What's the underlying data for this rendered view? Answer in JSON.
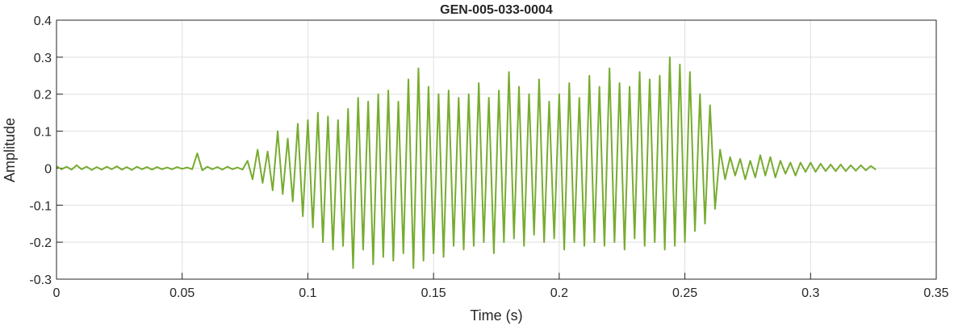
{
  "chart_data": {
    "type": "line",
    "title": "GEN-005-033-0004",
    "x_label": "Time (s)",
    "y_label": "Amplitude",
    "x": [
      0,
      0.002,
      0.004,
      0.006,
      0.008,
      0.01,
      0.012,
      0.014,
      0.016,
      0.018,
      0.02,
      0.022,
      0.024,
      0.026,
      0.028,
      0.03,
      0.032,
      0.034,
      0.036,
      0.038,
      0.04,
      0.042,
      0.044,
      0.046,
      0.048,
      0.05,
      0.052,
      0.054,
      0.056,
      0.058,
      0.06,
      0.062,
      0.064,
      0.066,
      0.068,
      0.07,
      0.072,
      0.074,
      0.076,
      0.078,
      0.08,
      0.082,
      0.084,
      0.086,
      0.088,
      0.09,
      0.092,
      0.094,
      0.096,
      0.098,
      0.1,
      0.102,
      0.104,
      0.106,
      0.108,
      0.11,
      0.112,
      0.114,
      0.116,
      0.118,
      0.12,
      0.122,
      0.124,
      0.126,
      0.128,
      0.13,
      0.132,
      0.134,
      0.136,
      0.138,
      0.14,
      0.142,
      0.144,
      0.146,
      0.148,
      0.15,
      0.152,
      0.154,
      0.156,
      0.158,
      0.16,
      0.162,
      0.164,
      0.166,
      0.168,
      0.17,
      0.172,
      0.174,
      0.176,
      0.178,
      0.18,
      0.182,
      0.184,
      0.186,
      0.188,
      0.19,
      0.192,
      0.194,
      0.196,
      0.198,
      0.2,
      0.202,
      0.204,
      0.206,
      0.208,
      0.21,
      0.212,
      0.214,
      0.216,
      0.218,
      0.22,
      0.222,
      0.224,
      0.226,
      0.228,
      0.23,
      0.232,
      0.234,
      0.236,
      0.238,
      0.24,
      0.242,
      0.244,
      0.246,
      0.248,
      0.25,
      0.252,
      0.254,
      0.256,
      0.258,
      0.26,
      0.262,
      0.264,
      0.266,
      0.268,
      0.27,
      0.272,
      0.274,
      0.276,
      0.278,
      0.28,
      0.282,
      0.284,
      0.286,
      0.288,
      0.29,
      0.292,
      0.294,
      0.296,
      0.298,
      0.3,
      0.302,
      0.304,
      0.306,
      0.308,
      0.31,
      0.312,
      0.314,
      0.316,
      0.318,
      0.32,
      0.322,
      0.324,
      0.326
    ],
    "series": [
      {
        "color": "#77ac30",
        "values": [
          0.005,
          -0.003,
          0.004,
          -0.004,
          0.008,
          -0.003,
          0.004,
          -0.005,
          0.003,
          -0.004,
          0.004,
          -0.003,
          0.005,
          -0.004,
          0.003,
          -0.005,
          0.004,
          -0.003,
          0.003,
          -0.004,
          0.003,
          -0.003,
          0.002,
          -0.003,
          0.003,
          -0.002,
          0.002,
          -0.003,
          0.04,
          -0.006,
          0.004,
          -0.003,
          0.003,
          -0.004,
          0.004,
          -0.003,
          0.002,
          -0.004,
          0.02,
          -0.03,
          0.05,
          -0.04,
          0.045,
          -0.06,
          0.1,
          -0.07,
          0.08,
          -0.09,
          0.12,
          -0.13,
          0.13,
          -0.16,
          0.15,
          -0.2,
          0.14,
          -0.22,
          0.13,
          -0.21,
          0.16,
          -0.27,
          0.19,
          -0.22,
          0.18,
          -0.26,
          0.2,
          -0.24,
          0.21,
          -0.25,
          0.18,
          -0.23,
          0.24,
          -0.27,
          0.27,
          -0.25,
          0.22,
          -0.23,
          0.2,
          -0.24,
          0.21,
          -0.21,
          0.19,
          -0.22,
          0.2,
          -0.21,
          0.23,
          -0.2,
          0.19,
          -0.23,
          0.21,
          -0.2,
          0.26,
          -0.19,
          0.22,
          -0.21,
          0.2,
          -0.18,
          0.24,
          -0.2,
          0.18,
          -0.19,
          0.2,
          -0.22,
          0.23,
          -0.2,
          0.19,
          -0.21,
          0.25,
          -0.2,
          0.22,
          -0.21,
          0.27,
          -0.2,
          0.23,
          -0.22,
          0.22,
          -0.19,
          0.26,
          -0.21,
          0.24,
          -0.2,
          0.25,
          -0.22,
          0.3,
          -0.21,
          0.28,
          -0.2,
          0.26,
          -0.17,
          0.2,
          -0.15,
          0.17,
          -0.11,
          0.05,
          -0.03,
          0.03,
          -0.02,
          0.025,
          -0.03,
          0.02,
          -0.025,
          0.035,
          -0.02,
          0.03,
          -0.025,
          0.02,
          -0.015,
          0.015,
          -0.02,
          0.015,
          -0.01,
          0.015,
          -0.01,
          0.012,
          -0.008,
          0.01,
          -0.008,
          0.01,
          -0.008,
          0.008,
          -0.007,
          0.008,
          -0.006,
          0.006,
          -0.004
        ]
      }
    ],
    "xlim": [
      0,
      0.35
    ],
    "xticks": [
      0,
      0.05,
      0.1,
      0.15,
      0.2,
      0.25,
      0.3,
      0.35
    ],
    "ylim": [
      -0.3,
      0.4
    ],
    "yticks": [
      -0.3,
      -0.2,
      -0.1,
      0,
      0.1,
      0.2,
      0.3,
      0.4
    ],
    "grid": true
  }
}
